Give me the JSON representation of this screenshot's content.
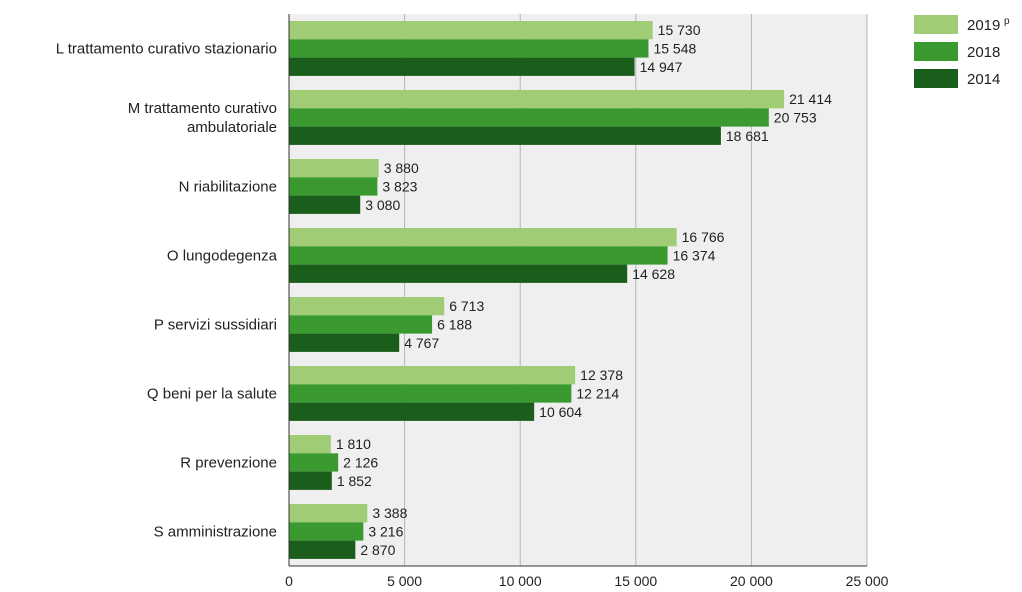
{
  "chart_data": {
    "type": "bar",
    "orientation": "horizontal",
    "categories": [
      [
        "L trattamento curativo stazionario"
      ],
      [
        "M trattamento curativo",
        "ambulatoriale"
      ],
      [
        "N riabilitazione"
      ],
      [
        "O lungodegenza"
      ],
      [
        "P servizi sussidiari"
      ],
      [
        "Q beni per la salute"
      ],
      [
        "R prevenzione"
      ],
      [
        "S amministrazione"
      ]
    ],
    "series": [
      {
        "name": "2019",
        "superscript": "p",
        "color": "#a1cc76",
        "values": [
          15730,
          21414,
          3880,
          16766,
          6713,
          12378,
          1810,
          3388
        ],
        "labels": [
          "15 730",
          "21 414",
          "3 880",
          "16 766",
          "6 713",
          "12 378",
          "1 810",
          "3 388"
        ]
      },
      {
        "name": "2018",
        "color": "#3a9a2f",
        "values": [
          15548,
          20753,
          3823,
          16374,
          6188,
          12214,
          2126,
          3216
        ],
        "labels": [
          "15 548",
          "20 753",
          "3 823",
          "16 374",
          "6 188",
          "12 214",
          "2 126",
          "3 216"
        ]
      },
      {
        "name": "2014",
        "color": "#1b5e1c",
        "values": [
          14947,
          18681,
          3080,
          14628,
          4767,
          10604,
          1852,
          2870
        ],
        "labels": [
          "14 947",
          "18 681",
          "3 080",
          "14 628",
          "4 767",
          "10 604",
          "1 852",
          "2 870"
        ]
      }
    ],
    "xlim": [
      0,
      25000
    ],
    "xticks": [
      0,
      5000,
      10000,
      15000,
      20000,
      25000
    ],
    "xtick_labels": [
      "0",
      "5 000",
      "10 000",
      "15 000",
      "20 000",
      "25 000"
    ],
    "grid": "vertical",
    "legend_position": "top-right",
    "plot_background": "#efefef",
    "title": "",
    "xlabel": "",
    "ylabel": ""
  }
}
